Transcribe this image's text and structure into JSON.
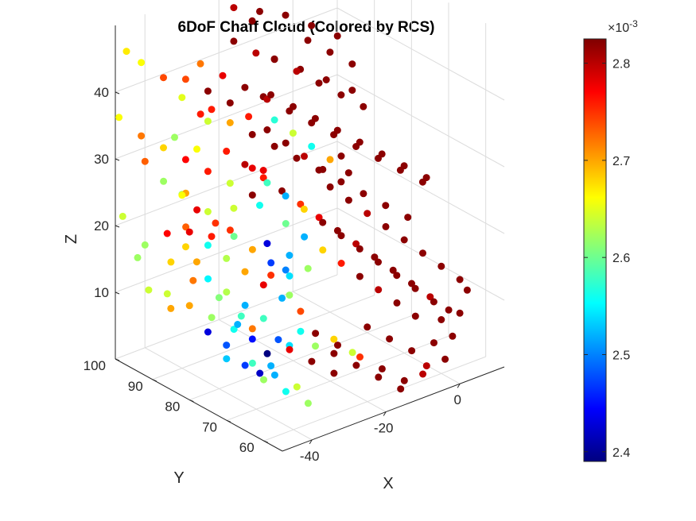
{
  "chart_data": {
    "type": "scatter",
    "title": "6DoF Chaff Cloud (Colored by RCS)",
    "xlabel": "X",
    "ylabel": "Y",
    "zlabel": "Z",
    "xlim": [
      -48,
      12
    ],
    "ylim": [
      55,
      100
    ],
    "zlim": [
      0,
      50
    ],
    "x_ticks": [
      -40,
      -20,
      0
    ],
    "y_ticks": [
      60,
      70,
      80,
      90,
      100
    ],
    "z_ticks": [
      10,
      20,
      30,
      40
    ],
    "x_tick_labels": [
      "-40",
      "-20",
      "0"
    ],
    "y_tick_labels": [
      "60",
      "70",
      "80",
      "90",
      "100"
    ],
    "z_tick_labels": [
      "10",
      "20",
      "30",
      "40"
    ],
    "grid": true,
    "colormap": "jet",
    "colorbar": {
      "range": [
        0.00239,
        0.002825
      ],
      "ticks": [
        0.0024,
        0.0025,
        0.0026,
        0.0027,
        0.0028
      ],
      "tick_labels": [
        "2.4",
        "2.5",
        "2.6",
        "2.7",
        "2.8"
      ],
      "exponent_label": "×10",
      "exponent": "-3"
    },
    "points": [
      [
        -46,
        99,
        46,
        0.00267
      ],
      [
        -43,
        98,
        44,
        0.00266
      ],
      [
        -38,
        97,
        41,
        0.00274
      ],
      [
        -35,
        95,
        38,
        0.00265
      ],
      [
        -30,
        93,
        34,
        0.00264
      ],
      [
        -44,
        96,
        30,
        0.00273
      ],
      [
        -41,
        94,
        27,
        0.00262
      ],
      [
        -37,
        92,
        25,
        0.0027
      ],
      [
        -33,
        90,
        22,
        0.00264
      ],
      [
        -29,
        88,
        19,
        0.00275
      ],
      [
        -45,
        95,
        18,
        0.00262
      ],
      [
        -40,
        93,
        15,
        0.00268
      ],
      [
        -36,
        91,
        12,
        0.00272
      ],
      [
        -31,
        89,
        9,
        0.00261
      ],
      [
        -27,
        87,
        6,
        0.00258
      ],
      [
        -42,
        97,
        10,
        0.00264
      ],
      [
        -38,
        95,
        7,
        0.0027
      ],
      [
        -25,
        86,
        4,
        0.00272
      ],
      [
        -22,
        84,
        12,
        0.00275
      ],
      [
        -19,
        82,
        9,
        0.00262
      ],
      [
        -35,
        88,
        5,
        0.00243
      ],
      [
        -32,
        86,
        3,
        0.00248
      ],
      [
        -30,
        85,
        6,
        0.00252
      ],
      [
        -28,
        83,
        4,
        0.00245
      ],
      [
        -26,
        81,
        2,
        0.00239
      ],
      [
        -24,
        80,
        4,
        0.00248
      ],
      [
        -22,
        79,
        3,
        0.00254
      ],
      [
        -20,
        78,
        5,
        0.00256
      ],
      [
        -34,
        84,
        2,
        0.00253
      ],
      [
        -31,
        82,
        1,
        0.00247
      ],
      [
        -29,
        80,
        0,
        0.00242
      ],
      [
        -27,
        79,
        1,
        0.00252
      ],
      [
        -18,
        76,
        3,
        0.00262
      ],
      [
        -15,
        74,
        4,
        0.00268
      ],
      [
        -12,
        72,
        2,
        0.00264
      ],
      [
        -38,
        90,
        20,
        0.00278
      ],
      [
        -35,
        88,
        18,
        0.00256
      ],
      [
        -32,
        86,
        16,
        0.00263
      ],
      [
        -29,
        84,
        14,
        0.0027
      ],
      [
        -26,
        82,
        12,
        0.00278
      ],
      [
        -23,
        80,
        10,
        0.00252
      ],
      [
        -20,
        78,
        8,
        0.00274
      ],
      [
        -28,
        90,
        30,
        0.00276
      ],
      [
        -25,
        88,
        28,
        0.0028
      ],
      [
        -22,
        86,
        26,
        0.00276
      ],
      [
        -19,
        84,
        24,
        0.00282
      ],
      [
        -16,
        82,
        22,
        0.00275
      ],
      [
        -13,
        80,
        20,
        0.00278
      ],
      [
        -10,
        78,
        18,
        0.00282
      ],
      [
        -7,
        76,
        16,
        0.0028
      ],
      [
        -4,
        74,
        14,
        0.00282
      ],
      [
        -1,
        72,
        12,
        0.00282
      ],
      [
        2,
        70,
        10,
        0.00282
      ],
      [
        5,
        68,
        8,
        0.0028
      ],
      [
        8,
        66,
        6,
        0.00282
      ],
      [
        -30,
        95,
        42,
        0.00272
      ],
      [
        -26,
        93,
        40,
        0.00278
      ],
      [
        -22,
        91,
        38,
        0.00282
      ],
      [
        -18,
        89,
        36,
        0.0028
      ],
      [
        -14,
        87,
        34,
        0.00282
      ],
      [
        -10,
        85,
        32,
        0.00282
      ],
      [
        -6,
        83,
        30,
        0.00282
      ],
      [
        -2,
        81,
        28,
        0.00282
      ],
      [
        2,
        79,
        26,
        0.00282
      ],
      [
        6,
        77,
        24,
        0.00282
      ],
      [
        10,
        75,
        22,
        0.00282
      ],
      [
        -20,
        96,
        48,
        0.0028
      ],
      [
        -15,
        94,
        47,
        0.00282
      ],
      [
        -10,
        92,
        46,
        0.00282
      ],
      [
        -5,
        90,
        44,
        0.00282
      ],
      [
        0,
        88,
        42,
        0.00282
      ],
      [
        -24,
        78,
        22,
        0.0026
      ],
      [
        -21,
        76,
        20,
        0.00252
      ],
      [
        -18,
        74,
        18,
        0.00268
      ],
      [
        -15,
        72,
        16,
        0.00276
      ],
      [
        -12,
        70,
        14,
        0.00282
      ],
      [
        -9,
        68,
        12,
        0.0028
      ],
      [
        -6,
        66,
        10,
        0.00282
      ],
      [
        -3,
        64,
        8,
        0.00282
      ],
      [
        -17,
        88,
        33,
        0.00257
      ],
      [
        -14,
        86,
        31,
        0.00264
      ],
      [
        -11,
        84,
        29,
        0.00256
      ],
      [
        -8,
        82,
        27,
        0.0027
      ],
      [
        -5,
        80,
        25,
        0.00282
      ],
      [
        -33,
        92,
        36,
        0.00276
      ],
      [
        -36,
        90,
        32,
        0.00266
      ],
      [
        -40,
        92,
        34,
        0.00262
      ],
      [
        -13,
        92,
        40,
        0.00282
      ],
      [
        -9,
        90,
        38,
        0.0028
      ],
      [
        -5,
        88,
        36,
        0.00282
      ],
      [
        -1,
        86,
        34,
        0.00282
      ],
      [
        3,
        84,
        32,
        0.00282
      ],
      [
        -24,
        70,
        8,
        0.00282
      ],
      [
        -20,
        68,
        6,
        0.00282
      ],
      [
        -16,
        66,
        4,
        0.00275
      ],
      [
        -12,
        64,
        2,
        0.00282
      ],
      [
        -8,
        62,
        0,
        0.00282
      ],
      [
        -4,
        60,
        2,
        0.0028
      ],
      [
        0,
        62,
        4,
        0.00282
      ],
      [
        4,
        64,
        6,
        0.00282
      ],
      [
        -27,
        74,
        16,
        0.00254
      ],
      [
        -30,
        76,
        18,
        0.00247
      ],
      [
        -33,
        78,
        20,
        0.0027
      ],
      [
        -36,
        80,
        22,
        0.0026
      ],
      [
        -39,
        82,
        24,
        0.00275
      ],
      [
        -42,
        84,
        26,
        0.00278
      ],
      [
        -44,
        86,
        28,
        0.00266
      ],
      [
        -41,
        88,
        22,
        0.00273
      ],
      [
        -37,
        86,
        14,
        0.00255
      ],
      [
        -34,
        84,
        12,
        0.00263
      ],
      [
        -31,
        82,
        10,
        0.00252
      ],
      [
        -28,
        80,
        8,
        0.00258
      ],
      [
        -14,
        76,
        26,
        0.00282
      ],
      [
        -11,
        74,
        24,
        0.00282
      ],
      [
        -8,
        72,
        22,
        0.0028
      ],
      [
        -5,
        70,
        20,
        0.00282
      ],
      [
        -2,
        68,
        18,
        0.00282
      ],
      [
        1,
        66,
        16,
        0.00282
      ],
      [
        4,
        64,
        14,
        0.00282
      ],
      [
        7,
        62,
        12,
        0.00282
      ],
      [
        -22,
        94,
        44,
        0.00282
      ],
      [
        -18,
        92,
        42,
        0.0028
      ],
      [
        -26,
        86,
        36,
        0.00276
      ],
      [
        -23,
        84,
        34,
        0.00282
      ],
      [
        -20,
        82,
        32,
        0.00282
      ],
      [
        -17,
        80,
        30,
        0.0028
      ],
      [
        -14,
        78,
        28,
        0.00282
      ],
      [
        -11,
        76,
        30,
        0.00282
      ],
      [
        -21,
        90,
        26,
        0.00278
      ],
      [
        -19,
        88,
        24,
        0.00258
      ],
      [
        -16,
        86,
        22,
        0.00252
      ],
      [
        -13,
        84,
        20,
        0.00268
      ],
      [
        -10,
        82,
        18,
        0.00282
      ],
      [
        -7,
        80,
        16,
        0.00282
      ],
      [
        -4,
        78,
        14,
        0.00282
      ],
      [
        -1,
        76,
        12,
        0.00282
      ],
      [
        2,
        74,
        10,
        0.00282
      ],
      [
        5,
        72,
        8,
        0.00282
      ],
      [
        8,
        70,
        6,
        0.00282
      ],
      [
        -29,
        72,
        6,
        0.00278
      ],
      [
        -25,
        70,
        4,
        0.00282
      ],
      [
        -21,
        68,
        2,
        0.00282
      ],
      [
        -44,
        90,
        12,
        0.00264
      ],
      [
        -40,
        88,
        10,
        0.0027
      ],
      [
        -36,
        86,
        8,
        0.00262
      ],
      [
        -32,
        84,
        6,
        0.00256
      ],
      [
        -48,
        98,
        22,
        0.00264
      ],
      [
        -46,
        96,
        16,
        0.00262
      ],
      [
        -47,
        100,
        36,
        0.00266
      ],
      [
        -43,
        98,
        33,
        0.00272
      ],
      [
        -39,
        96,
        31,
        0.00268
      ],
      [
        -35,
        94,
        29,
        0.00277
      ],
      [
        -31,
        92,
        27,
        0.00276
      ],
      [
        -27,
        90,
        25,
        0.00264
      ],
      [
        -23,
        88,
        23,
        0.00282
      ],
      [
        -20,
        86,
        38,
        0.00282
      ],
      [
        -16,
        84,
        36,
        0.00282
      ],
      [
        -12,
        82,
        34,
        0.00282
      ],
      [
        -8,
        80,
        32,
        0.00282
      ],
      [
        -4,
        78,
        30,
        0.00282
      ],
      [
        0,
        76,
        28,
        0.00282
      ],
      [
        4,
        74,
        26,
        0.00282
      ],
      [
        8,
        72,
        24,
        0.00282
      ],
      [
        -6,
        90,
        42,
        0.00282
      ],
      [
        -2,
        88,
        40,
        0.00282
      ],
      [
        2,
        86,
        38,
        0.00282
      ],
      [
        -17,
        94,
        46,
        0.00282
      ],
      [
        -12,
        96,
        48,
        0.00282
      ],
      [
        -35,
        76,
        4,
        0.00258
      ],
      [
        -31,
        74,
        2,
        0.00252
      ],
      [
        -27,
        72,
        0,
        0.00264
      ],
      [
        -23,
        66,
        6,
        0.00282
      ],
      [
        -19,
        64,
        4,
        0.00282
      ],
      [
        -15,
        62,
        2,
        0.00282
      ],
      [
        -11,
        60,
        0,
        0.00282
      ],
      [
        -7,
        58,
        2,
        0.0028
      ],
      [
        -3,
        56,
        4,
        0.00282
      ],
      [
        1,
        58,
        6,
        0.00282
      ],
      [
        5,
        60,
        8,
        0.00282
      ],
      [
        9,
        62,
        10,
        0.00282
      ],
      [
        -26,
        96,
        34,
        0.00276
      ],
      [
        -23,
        94,
        32,
        0.0027
      ],
      [
        -19,
        92,
        30,
        0.00282
      ],
      [
        -15,
        90,
        28,
        0.00282
      ],
      [
        -11,
        88,
        26,
        0.00282
      ],
      [
        -7,
        86,
        24,
        0.00282
      ],
      [
        -3,
        84,
        22,
        0.00282
      ],
      [
        1,
        82,
        20,
        0.00282
      ],
      [
        5,
        80,
        18,
        0.00282
      ],
      [
        9,
        78,
        16,
        0.00282
      ],
      [
        -10,
        70,
        6,
        0.00282
      ],
      [
        -6,
        68,
        4,
        0.00282
      ],
      [
        -2,
        66,
        2,
        0.00282
      ],
      [
        -38,
        70,
        4,
        0.00262
      ],
      [
        -34,
        68,
        2,
        0.00256
      ],
      [
        -30,
        66,
        0,
        0.00262
      ],
      [
        -33,
        96,
        40,
        0.00274
      ],
      [
        -29,
        94,
        38,
        0.00282
      ],
      [
        -25,
        92,
        36,
        0.00282
      ],
      [
        -21,
        80,
        16,
        0.00252
      ],
      [
        -18,
        78,
        14,
        0.00262
      ],
      [
        -42,
        92,
        20,
        0.00277
      ],
      [
        -39,
        90,
        18,
        0.00268
      ],
      [
        -36,
        94,
        24,
        0.00262
      ],
      [
        -25,
        82,
        18,
        0.00243
      ],
      [
        -22,
        80,
        14,
        0.0025
      ],
      [
        -19,
        90,
        20,
        0.00256
      ],
      [
        -16,
        92,
        24,
        0.00278
      ],
      [
        -24,
        92,
        20,
        0.00264
      ],
      [
        -28,
        94,
        16,
        0.00276
      ],
      [
        -30,
        96,
        12,
        0.0027
      ],
      [
        -14,
        94,
        34,
        0.00282
      ],
      [
        -9,
        96,
        38,
        0.00282
      ],
      [
        -4,
        94,
        36,
        0.00282
      ],
      [
        1,
        92,
        34,
        0.00282
      ],
      [
        6,
        90,
        32,
        0.00282
      ]
    ]
  }
}
